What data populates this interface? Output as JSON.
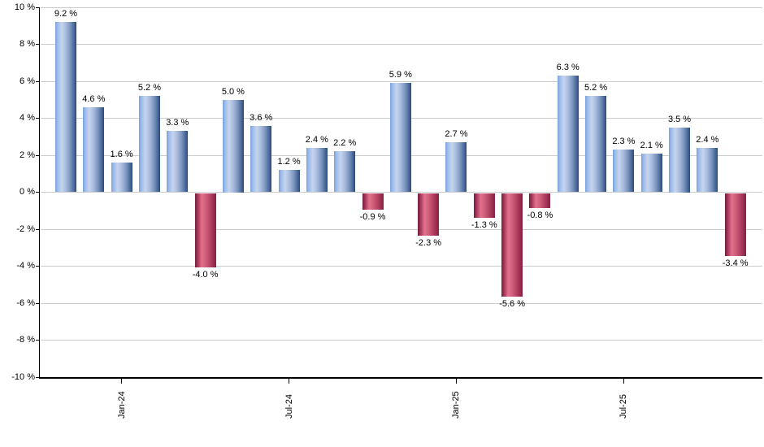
{
  "chart_data": {
    "type": "bar",
    "title": "",
    "xlabel": "",
    "ylabel": "",
    "ylim": [
      -10,
      10
    ],
    "grid": "horizontal",
    "legend": "none",
    "values": [
      9.2,
      4.6,
      1.6,
      5.2,
      3.3,
      -4.0,
      5.0,
      3.6,
      1.2,
      2.4,
      2.2,
      -0.9,
      5.9,
      -2.3,
      2.7,
      -1.3,
      -5.6,
      -0.8,
      6.3,
      5.2,
      2.3,
      2.1,
      3.5,
      2.4,
      -3.4
    ],
    "bar_labels": [
      "9.2 %",
      "4.6 %",
      "1.6 %",
      "5.2 %",
      "3.3 %",
      "-4.0 %",
      "5.0 %",
      "3.6 %",
      "1.2 %",
      "2.4 %",
      "2.2 %",
      "-0.9 %",
      "5.9 %",
      "-2.3 %",
      "2.7 %",
      "-1.3 %",
      "-5.6 %",
      "-0.8 %",
      "6.3 %",
      "5.2 %",
      "2.3 %",
      "2.1 %",
      "3.5 %",
      "2.4 %",
      "-3.4 %"
    ],
    "y_tick_values": [
      10,
      8,
      6,
      4,
      2,
      0,
      -2,
      -4,
      -6,
      -8,
      -10
    ],
    "y_tick_labels": [
      "10 %",
      "8 %",
      "6 %",
      "4 %",
      "2 %",
      "0 %",
      "-2 %",
      "-4 %",
      "-6 %",
      "-8 %",
      "-10 %"
    ],
    "x_ticks": [
      {
        "bar_index": 2,
        "label": "Jan-24"
      },
      {
        "bar_index": 8,
        "label": "Jul-24"
      },
      {
        "bar_index": 14,
        "label": "Jan-25"
      },
      {
        "bar_index": 20,
        "label": "Jul-25"
      }
    ],
    "colors": {
      "positive_bar_light": "#c6d4ef",
      "positive_bar_mid": "#7ba1de",
      "positive_bar_dark": "#2b4878",
      "negative_bar_light": "#e2728b",
      "negative_bar_mid": "#b34264",
      "negative_bar_dark": "#702039",
      "gridline": "#cccccc",
      "axis": "#000000",
      "label_text": "#000000"
    }
  }
}
